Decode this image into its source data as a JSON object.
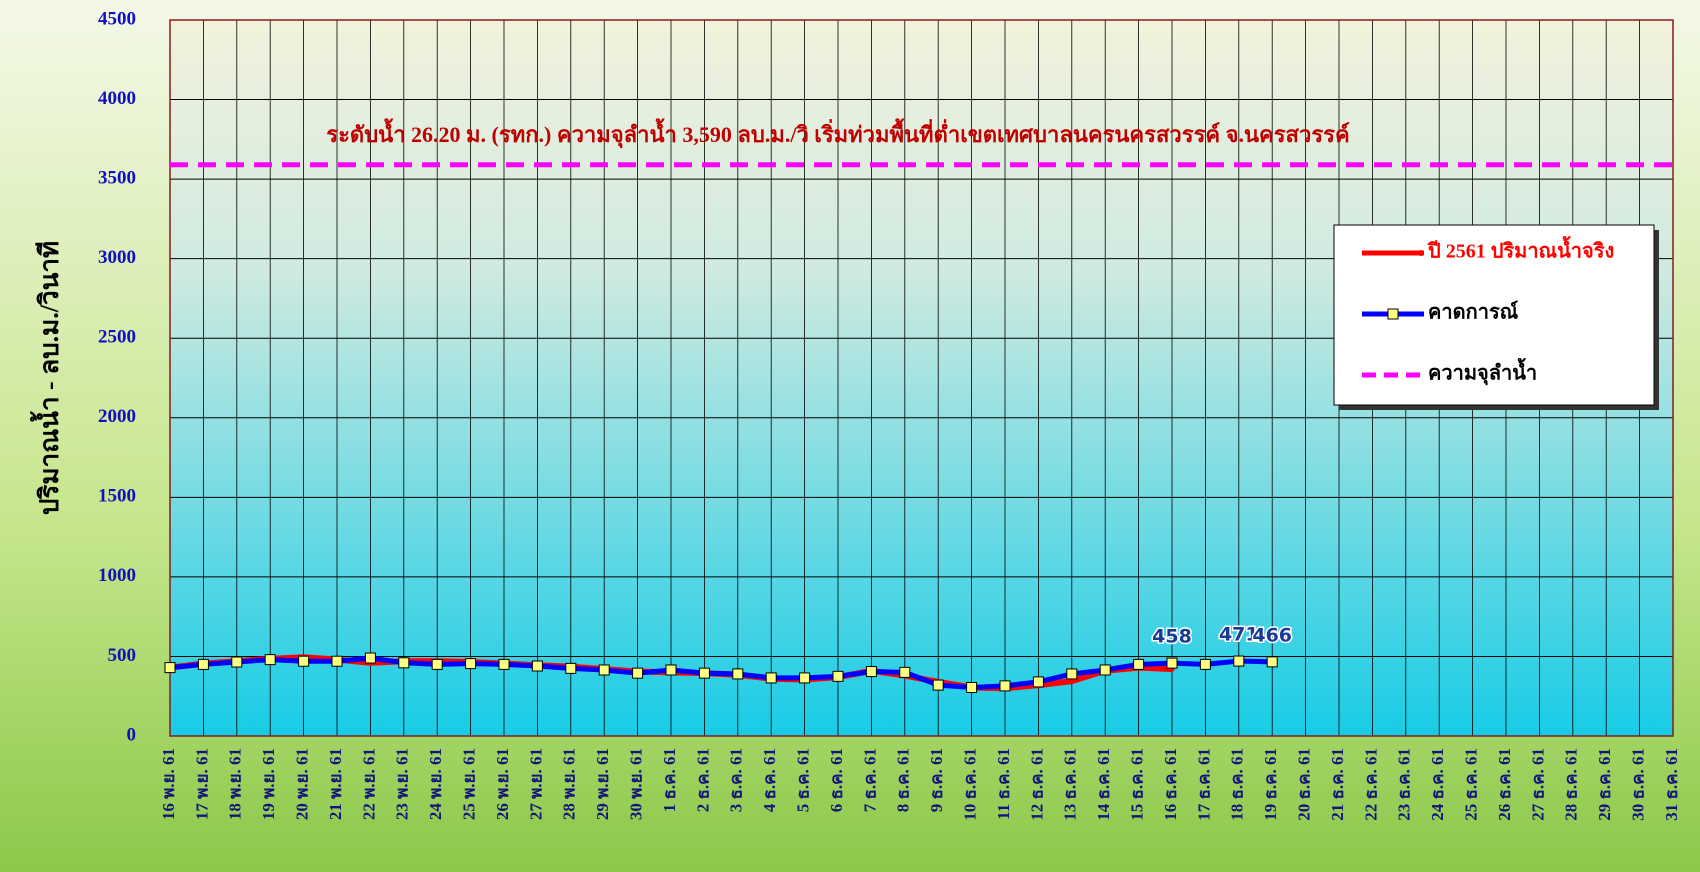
{
  "chart_data": {
    "type": "line",
    "y_label": "ปริมาณน้ำ - ลบ.ม./วินาที",
    "annotation": "ระดับน้ำ 26.20 ม. (รทก.)   ความจุลำน้ำ 3,590 ลบ.ม./วิ   เริ่มท่วมพื้นที่ต่ำเขตเทศบาลนครนครสวรรค์ จ.นครสวรรค์",
    "categories": [
      "16 พ.ย. 61",
      "17 พ.ย. 61",
      "18 พ.ย. 61",
      "19 พ.ย. 61",
      "20 พ.ย. 61",
      "21 พ.ย. 61",
      "22 พ.ย. 61",
      "23 พ.ย. 61",
      "24 พ.ย. 61",
      "25 พ.ย. 61",
      "26 พ.ย. 61",
      "27 พ.ย. 61",
      "28 พ.ย. 61",
      "29 พ.ย. 61",
      "30 พ.ย. 61",
      "1 ธ.ค. 61",
      "2 ธ.ค. 61",
      "3 ธ.ค. 61",
      "4 ธ.ค. 61",
      "5 ธ.ค. 61",
      "6 ธ.ค. 61",
      "7 ธ.ค. 61",
      "8 ธ.ค. 61",
      "9 ธ.ค. 61",
      "10 ธ.ค. 61",
      "11 ธ.ค. 61",
      "12 ธ.ค. 61",
      "13 ธ.ค. 61",
      "14 ธ.ค. 61",
      "15 ธ.ค. 61",
      "16 ธ.ค. 61",
      "17 ธ.ค. 61",
      "18 ธ.ค. 61",
      "19 ธ.ค. 61",
      "20 ธ.ค. 61",
      "21 ธ.ค. 61",
      "22 ธ.ค. 61",
      "23 ธ.ค. 61",
      "24 ธ.ค. 61",
      "25 ธ.ค. 61",
      "26 ธ.ค. 61",
      "27 ธ.ค. 61",
      "28 ธ.ค. 61",
      "29 ธ.ค. 61",
      "30 ธ.ค. 61",
      "31 ธ.ค. 61"
    ],
    "series": [
      {
        "name": "ปี 2561 ปริมาณน้ำจริง",
        "color": "#ff0000",
        "values": [
          430,
          455,
          470,
          485,
          495,
          480,
          460,
          470,
          470,
          465,
          455,
          445,
          435,
          420,
          405,
          400,
          395,
          385,
          360,
          355,
          370,
          410,
          380,
          340,
          305,
          300,
          320,
          345,
          410,
          430,
          420,
          null,
          null,
          null,
          null,
          null,
          null,
          null,
          null,
          null,
          null,
          null,
          null,
          null,
          null,
          null
        ]
      },
      {
        "name": "คาดการณ์",
        "color": "#0000ff",
        "values": [
          430,
          450,
          465,
          480,
          470,
          470,
          490,
          460,
          450,
          455,
          450,
          440,
          425,
          415,
          395,
          415,
          395,
          390,
          365,
          365,
          375,
          405,
          400,
          320,
          305,
          315,
          340,
          390,
          415,
          450,
          458,
          450,
          471,
          466,
          null,
          null,
          null,
          null,
          null,
          null,
          null,
          null,
          null,
          null,
          null,
          null
        ],
        "value_labels": [
          null,
          null,
          null,
          null,
          null,
          null,
          null,
          null,
          null,
          null,
          null,
          null,
          null,
          null,
          null,
          null,
          null,
          null,
          null,
          null,
          null,
          null,
          null,
          null,
          null,
          null,
          null,
          null,
          null,
          null,
          "458",
          null,
          "471",
          "466",
          null,
          null,
          null,
          null,
          null,
          null,
          null,
          null,
          null,
          null,
          null,
          null
        ]
      }
    ],
    "threshold": {
      "name": "ความจุลำน้ำ",
      "value": 3590,
      "color": "#ff00ff"
    },
    "ylim": [
      0,
      4500
    ],
    "yticks": [
      0,
      500,
      1000,
      1500,
      2000,
      2500,
      3000,
      3500,
      4000,
      4500
    ],
    "grid": true
  }
}
